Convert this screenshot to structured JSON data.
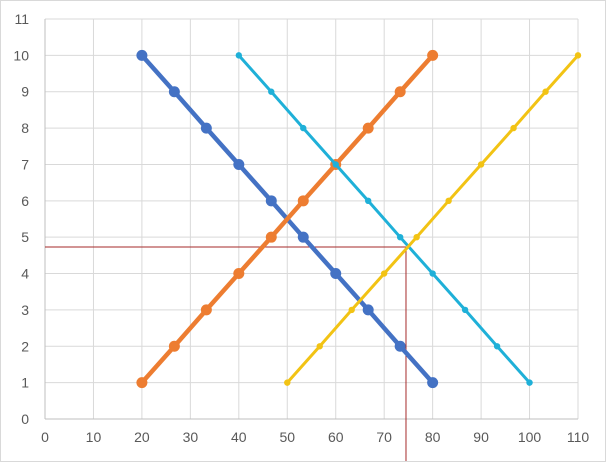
{
  "chart_data": {
    "type": "scatter",
    "title": "",
    "xlabel": "",
    "ylabel": "",
    "xlim": [
      0,
      110
    ],
    "ylim": [
      0,
      11
    ],
    "x_ticks": [
      0,
      10,
      20,
      30,
      40,
      50,
      60,
      70,
      80,
      90,
      100,
      110
    ],
    "y_ticks": [
      0,
      1,
      2,
      3,
      4,
      5,
      6,
      7,
      8,
      9,
      10,
      11
    ],
    "grid": true,
    "legend": "none",
    "series": [
      {
        "color": "#4472c4",
        "marker": "large-circle",
        "points": [
          [
            20,
            10
          ],
          [
            26.7,
            9
          ],
          [
            33.3,
            8
          ],
          [
            40,
            7
          ],
          [
            46.7,
            6
          ],
          [
            53.3,
            5
          ],
          [
            60,
            4
          ],
          [
            66.7,
            3
          ],
          [
            73.3,
            2
          ],
          [
            80,
            1
          ]
        ]
      },
      {
        "color": "#ed7d31",
        "marker": "large-circle",
        "points": [
          [
            20,
            1
          ],
          [
            26.7,
            2
          ],
          [
            33.3,
            3
          ],
          [
            40,
            4
          ],
          [
            46.7,
            5
          ],
          [
            53.3,
            6
          ],
          [
            60,
            7
          ],
          [
            66.7,
            8
          ],
          [
            73.3,
            9
          ],
          [
            80,
            10
          ]
        ]
      },
      {
        "color": "#1fb0d8",
        "marker": "small-circle",
        "points": [
          [
            40,
            10
          ],
          [
            46.7,
            9
          ],
          [
            53.3,
            8
          ],
          [
            60,
            7
          ],
          [
            66.7,
            6
          ],
          [
            73.3,
            5
          ],
          [
            80,
            4
          ],
          [
            86.7,
            3
          ],
          [
            93.3,
            2
          ],
          [
            100,
            1
          ]
        ]
      },
      {
        "color": "#f2c314",
        "marker": "small-circle",
        "points": [
          [
            50,
            1
          ],
          [
            56.7,
            2
          ],
          [
            63.3,
            3
          ],
          [
            70,
            4
          ],
          [
            76.7,
            5
          ],
          [
            83.3,
            6
          ],
          [
            90,
            7
          ],
          [
            96.7,
            8
          ],
          [
            103.3,
            9
          ],
          [
            110,
            10
          ]
        ]
      }
    ],
    "reference_lines": {
      "color": "#a52a2a",
      "horizontal_y": 4.73,
      "vertical_x": 74.5
    }
  }
}
